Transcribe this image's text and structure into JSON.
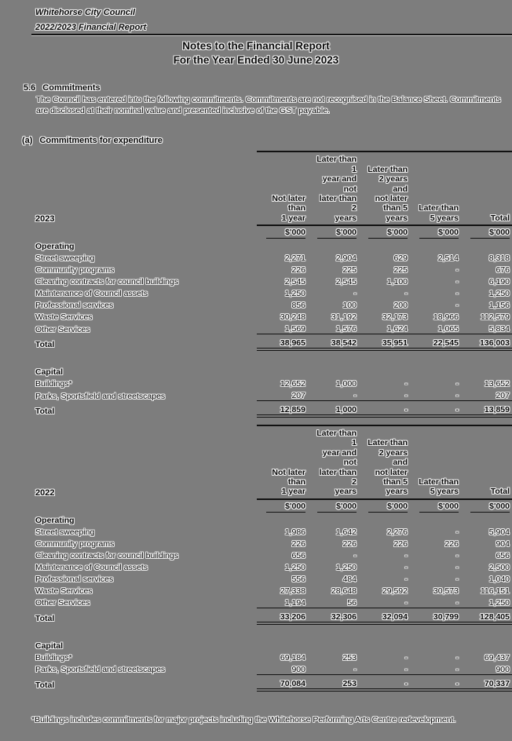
{
  "page": {
    "org": "Whitehorse City Council",
    "report": "2022/2023 Financial Report",
    "title_line1": "Notes to the Financial Report",
    "title_line2": "For the Year Ended 30 June 2023"
  },
  "section": {
    "number": "5.6",
    "heading": "Commitments",
    "body": "The Council has entered into the following commitments. Commitments are not recognised in the Balance Sheet. Commitments are disclosed at their nominal value and presented inclusive of the GST payable.",
    "sub_label": "(a)",
    "sub_heading": "Commitments for expenditure"
  },
  "columns": [
    "Not later than\n1 year",
    "Later than 1\nyear and not\nlater than 2\nyears",
    "Later than\n2 years and\nnot later\nthan 5\nyears",
    "Later than\n5 years",
    "Total"
  ],
  "units_label": "$'000",
  "tables": [
    {
      "year": "2023",
      "operating_heading": "Operating",
      "operating_rows": [
        {
          "label": "Street sweeping",
          "v": [
            "2,271",
            "2,904",
            "629",
            "2,514",
            "8,318"
          ]
        },
        {
          "label": "Community programs",
          "v": [
            "226",
            "225",
            "225",
            "-",
            "676"
          ]
        },
        {
          "label": "Cleaning contracts for council buildings",
          "v": [
            "2,545",
            "2,545",
            "1,100",
            "-",
            "6,190"
          ]
        },
        {
          "label": "Maintenance of Council assets",
          "v": [
            "1,250",
            "-",
            "-",
            "-",
            "1,250"
          ]
        },
        {
          "label": "Professional services",
          "v": [
            "856",
            "100",
            "200",
            "-",
            "1,156"
          ]
        },
        {
          "label": "Waste Services",
          "v": [
            "30,248",
            "31,192",
            "32,173",
            "18,966",
            "112,579"
          ]
        },
        {
          "label": "Other Services",
          "v": [
            "1,569",
            "1,576",
            "1,624",
            "1,065",
            "5,834"
          ]
        }
      ],
      "operating_total": {
        "label": "Total",
        "v": [
          "38,965",
          "38,542",
          "35,951",
          "22,545",
          "136,003"
        ]
      },
      "capital_heading": "Capital",
      "capital_rows": [
        {
          "label": "Buildings*",
          "v": [
            "12,652",
            "1,000",
            "-",
            "-",
            "13,652"
          ]
        },
        {
          "label": "Parks, Sportsfield and streetscapes",
          "v": [
            "207",
            "-",
            "-",
            "-",
            "207"
          ]
        }
      ],
      "capital_total": {
        "label": "Total",
        "v": [
          "12,859",
          "1,000",
          "-",
          "-",
          "13,859"
        ]
      }
    },
    {
      "year": "2022",
      "operating_heading": "Operating",
      "operating_rows": [
        {
          "label": "Street sweeping",
          "v": [
            "1,986",
            "1,642",
            "2,276",
            "-",
            "5,904"
          ]
        },
        {
          "label": "Community programs",
          "v": [
            "226",
            "226",
            "226",
            "226",
            "904"
          ]
        },
        {
          "label": "Cleaning contracts for council buildings",
          "v": [
            "656",
            "-",
            "-",
            "-",
            "656"
          ]
        },
        {
          "label": "Maintenance of Council assets",
          "v": [
            "1,250",
            "1,250",
            "-",
            "-",
            "2,500"
          ]
        },
        {
          "label": "Professional services",
          "v": [
            "556",
            "484",
            "-",
            "-",
            "1,040"
          ]
        },
        {
          "label": "Waste Services",
          "v": [
            "27,338",
            "28,648",
            "29,592",
            "30,573",
            "116,151"
          ]
        },
        {
          "label": "Other Services",
          "v": [
            "1,194",
            "56",
            "-",
            "-",
            "1,250"
          ]
        }
      ],
      "operating_total": {
        "label": "Total",
        "v": [
          "33,206",
          "32,306",
          "32,094",
          "30,799",
          "128,405"
        ]
      },
      "capital_heading": "Capital",
      "capital_rows": [
        {
          "label": "Buildings*",
          "v": [
            "69,184",
            "253",
            "-",
            "-",
            "69,437"
          ]
        },
        {
          "label": "Parks, Sportsfield and streetscapes",
          "v": [
            "900",
            "-",
            "-",
            "-",
            "900"
          ]
        }
      ],
      "capital_total": {
        "label": "Total",
        "v": [
          "70,084",
          "253",
          "-",
          "-",
          "70,337"
        ]
      }
    }
  ],
  "footnote": "*Buildings includes commitments for major projects including the Whitehorse Performing Arts Centre redevelopment."
}
